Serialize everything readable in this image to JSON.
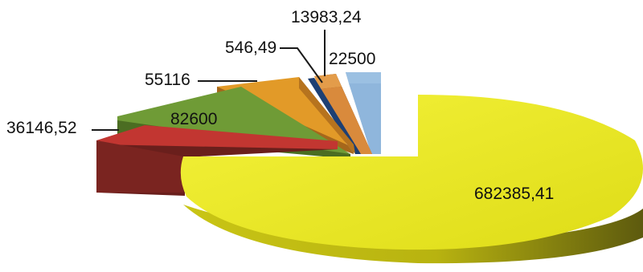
{
  "chart_data": {
    "type": "pie",
    "style": "3d-exploded",
    "title": "",
    "legend": "none",
    "slices": [
      {
        "label": "682385,41",
        "value": 682385.41,
        "color": "#e6e61e"
      },
      {
        "label": "36146,52",
        "value": 36146.52,
        "color": "#b8302c"
      },
      {
        "label": "82600",
        "value": 82600,
        "color": "#6f9b36"
      },
      {
        "label": "55116",
        "value": 55116,
        "color": "#e29a28"
      },
      {
        "label": "546,49",
        "value": 546.49,
        "color": "#1d3f73"
      },
      {
        "label": "13983,24",
        "value": 13983.24,
        "color": "#d98a3c"
      },
      {
        "label": "22500",
        "value": 22500,
        "color": "#8fb6dc"
      }
    ]
  }
}
